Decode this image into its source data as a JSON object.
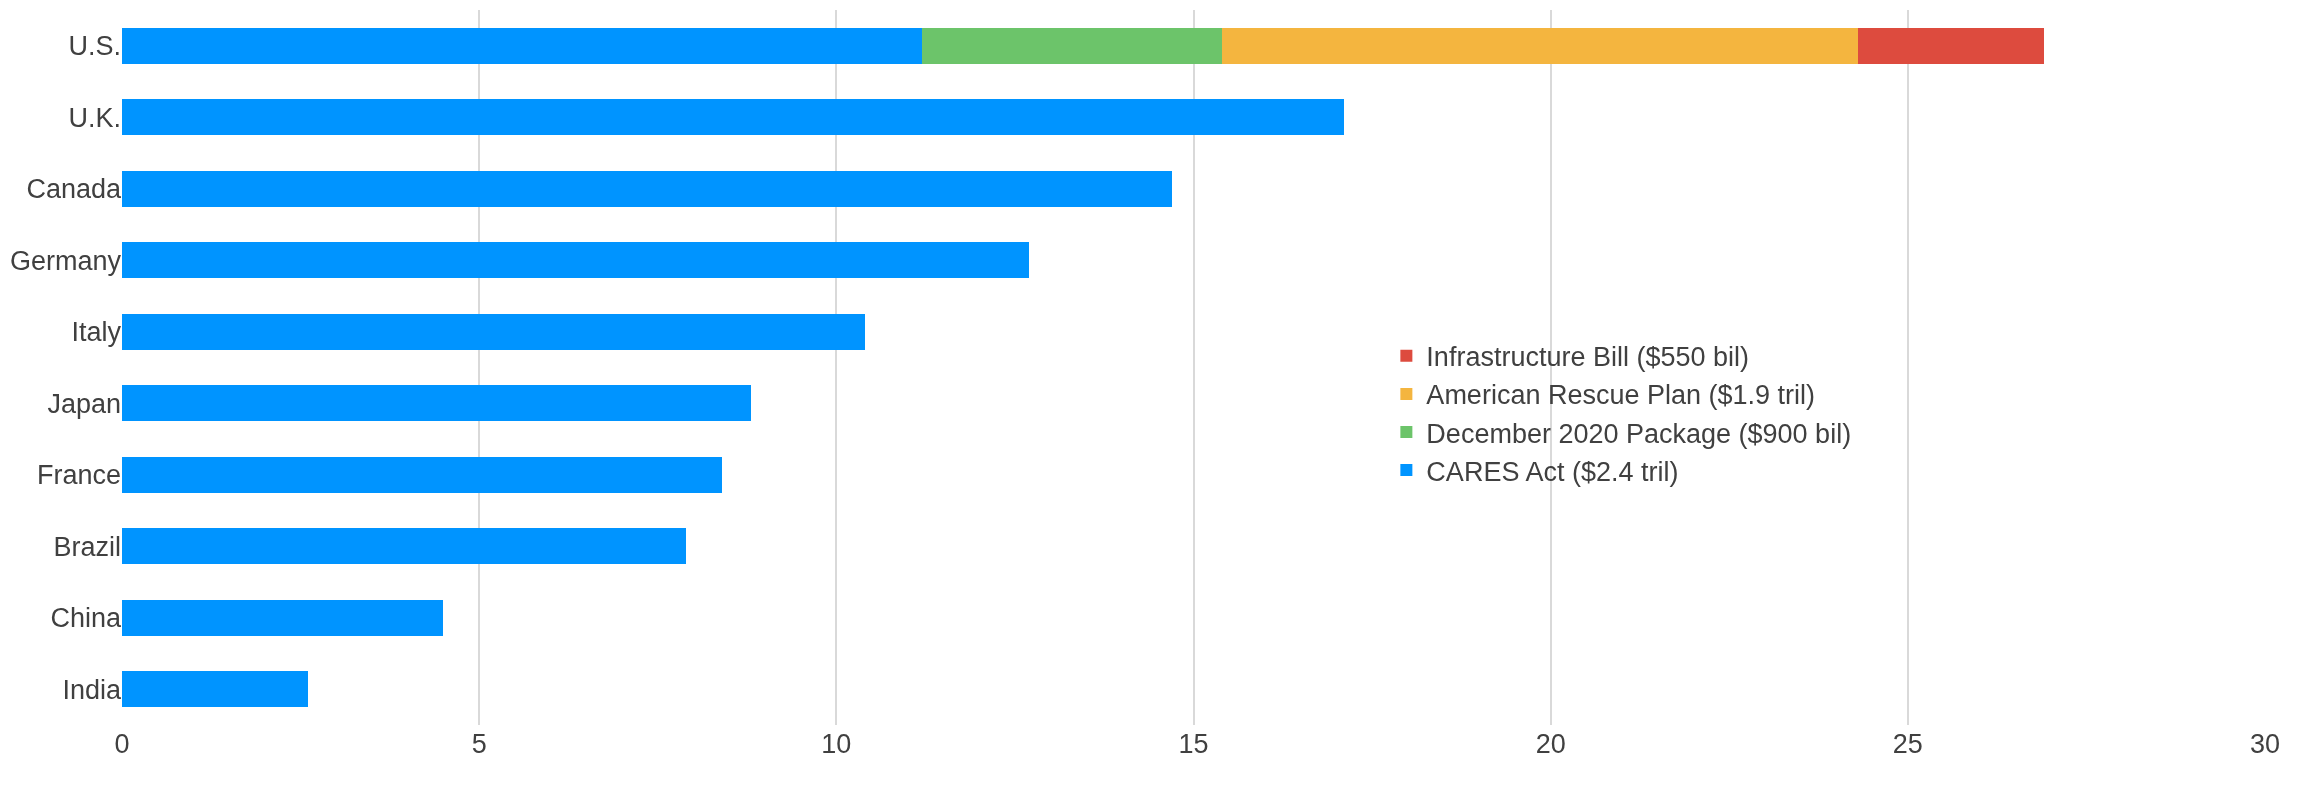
{
  "chart_data": {
    "type": "bar",
    "orientation": "horizontal",
    "stacked": true,
    "categories": [
      "U.S.",
      "U.K.",
      "Canada",
      "Germany",
      "Italy",
      "Japan",
      "France",
      "Brazil",
      "China",
      "India"
    ],
    "series": [
      {
        "name": "CARES Act ($2.4 tril)",
        "color": "#0094ff",
        "values": [
          11.2,
          17.1,
          14.7,
          12.7,
          10.4,
          8.8,
          8.4,
          7.9,
          4.5,
          2.6
        ]
      },
      {
        "name": "December 2020 Package ($900 bil)",
        "color": "#6cc46a",
        "values": [
          4.2,
          null,
          null,
          null,
          null,
          null,
          null,
          null,
          null,
          null
        ]
      },
      {
        "name": "American Rescue Plan ($1.9 tril)",
        "color": "#f4b53f",
        "values": [
          8.9,
          null,
          null,
          null,
          null,
          null,
          null,
          null,
          null,
          null
        ]
      },
      {
        "name": "Infrastructure Bill ($550 bil)",
        "color": "#dd4b3e",
        "values": [
          2.6,
          null,
          null,
          null,
          null,
          null,
          null,
          null,
          null,
          null
        ]
      }
    ],
    "xlim": [
      0,
      30
    ],
    "xticks": [
      0,
      5,
      10,
      15,
      20,
      25,
      30
    ],
    "grid": "x",
    "legend": "right"
  }
}
